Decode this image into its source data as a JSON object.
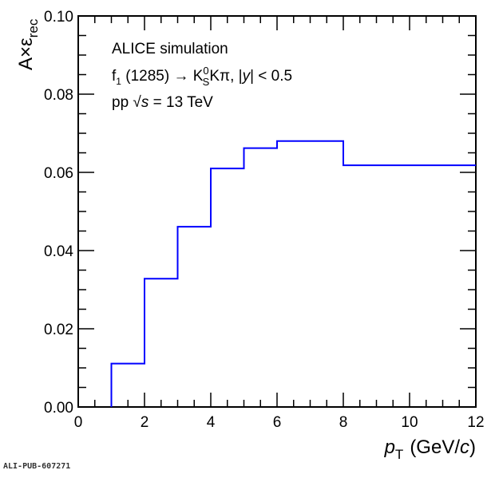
{
  "chart_data": {
    "type": "histogram-step",
    "title": "",
    "xlabel": {
      "var": "p",
      "sub": "T",
      "unit_pre": "(GeV/",
      "unit_var": "c",
      "unit_post": ")"
    },
    "ylabel": {
      "main": "A×ε",
      "sub": "rec"
    },
    "xlim": [
      0,
      12
    ],
    "ylim": [
      0,
      0.1
    ],
    "x_ticks": [
      0,
      2,
      4,
      6,
      8,
      10,
      12
    ],
    "x_tick_labels": [
      "0",
      "2",
      "4",
      "6",
      "8",
      "10",
      "12"
    ],
    "y_ticks": [
      0,
      0.02,
      0.04,
      0.06,
      0.08,
      0.1
    ],
    "y_tick_labels": [
      "0.00",
      "0.02",
      "0.04",
      "0.06",
      "0.08",
      "0.10"
    ],
    "grid": false,
    "series": [
      {
        "name": "A×ε_rec",
        "color": "#0000ff",
        "bin_edges": [
          1,
          2,
          3,
          4,
          5,
          6,
          8,
          12
        ],
        "values": [
          0.0111,
          0.0328,
          0.0461,
          0.061,
          0.0662,
          0.068,
          0.0618
        ]
      }
    ],
    "annotations": {
      "line1": "ALICE simulation",
      "line2_f": "f",
      "line2_f_sub": "1",
      "line2_mass": " (1285) → K",
      "line2_k_sup": "0",
      "line2_k_sub": "S",
      "line2_rest": "Kπ, |",
      "line2_y": "y",
      "line2_end": "| < 0.5",
      "line3_pp": "pp ",
      "line3_sqrt": "√",
      "line3_s": "s",
      "line3_rest": " = 13 TeV"
    },
    "footer": "ALI-PUB-607271"
  }
}
